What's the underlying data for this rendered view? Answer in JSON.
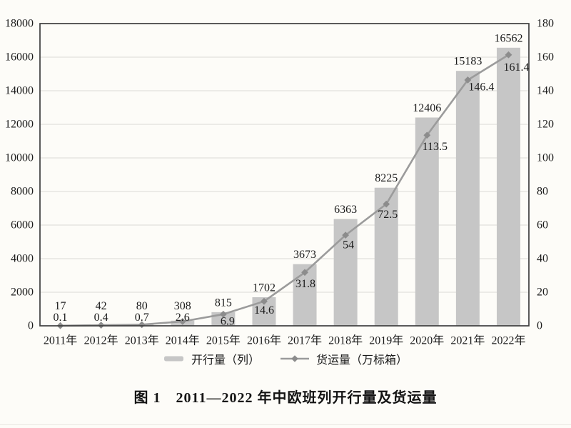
{
  "figure": {
    "caption": "图 1　2011—2022 年中欧班列开行量及货运量"
  },
  "chart_data": {
    "type": "bar+line",
    "categories": [
      "2011年",
      "2012年",
      "2013年",
      "2014年",
      "2015年",
      "2016年",
      "2017年",
      "2018年",
      "2019年",
      "2020年",
      "2021年",
      "2022年"
    ],
    "series": [
      {
        "name": "开行量（列）",
        "type": "bar",
        "axis": "left",
        "values": [
          17,
          42,
          80,
          308,
          815,
          1702,
          3673,
          6363,
          8225,
          12406,
          15183,
          16562
        ]
      },
      {
        "name": "货运量（万标箱）",
        "type": "line",
        "axis": "right",
        "values": [
          0.1,
          0.4,
          0.7,
          2.6,
          6.9,
          14.6,
          31.8,
          54,
          72.5,
          113.5,
          146.4,
          161.4
        ]
      }
    ],
    "left_axis": {
      "min": 0,
      "max": 18000,
      "step": 2000
    },
    "right_axis": {
      "min": 0,
      "max": 180,
      "step": 20
    },
    "grid": true,
    "data_labels": true,
    "legend_position": "bottom",
    "colors": {
      "bar": "#c6c6c6",
      "line": "#9b9b9b",
      "marker": "#8c8c8c",
      "grid": "#dbdad6",
      "frame": "#3e3e3e",
      "text": "#1b1b1b",
      "background": "#fdfcf8"
    }
  }
}
